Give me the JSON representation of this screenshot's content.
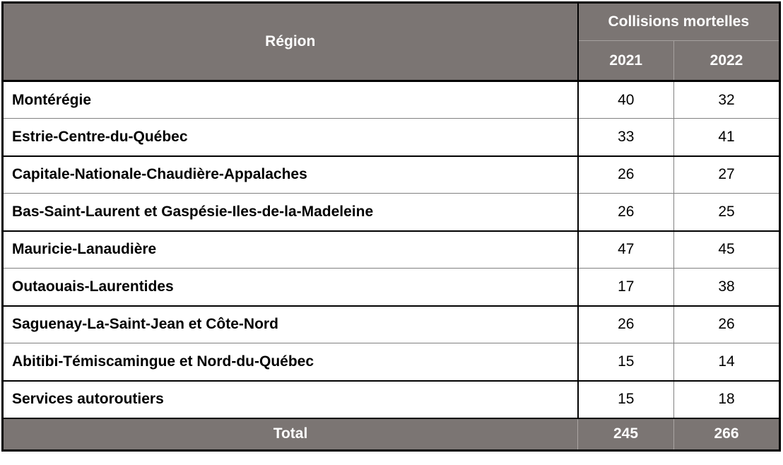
{
  "chart_data": {
    "type": "table",
    "header": {
      "region": "Région",
      "group": "Collisions mortelles",
      "years": [
        "2021",
        "2022"
      ]
    },
    "rows": [
      {
        "region": "Montérégie",
        "y2021": 40,
        "y2022": 32
      },
      {
        "region": "Estrie-Centre-du-Québec",
        "y2021": 33,
        "y2022": 41
      },
      {
        "region": "Capitale-Nationale-Chaudière-Appalaches",
        "y2021": 26,
        "y2022": 27
      },
      {
        "region": "Bas-Saint-Laurent et Gaspésie-Iles-de-la-Madeleine",
        "y2021": 26,
        "y2022": 25
      },
      {
        "region": "Mauricie-Lanaudière",
        "y2021": 47,
        "y2022": 45
      },
      {
        "region": "Outaouais-Laurentides",
        "y2021": 17,
        "y2022": 38
      },
      {
        "region": "Saguenay-La-Saint-Jean et Côte-Nord",
        "y2021": 26,
        "y2022": 26
      },
      {
        "region": "Abitibi-Témiscamingue et Nord-du-Québec",
        "y2021": 15,
        "y2022": 14
      },
      {
        "region": "Services autoroutiers",
        "y2021": 15,
        "y2022": 18
      }
    ],
    "total": {
      "label": "Total",
      "y2021": 245,
      "y2022": 266
    }
  },
  "colors": {
    "header_bg": "#7b7573",
    "header_text": "#ffffff",
    "thick_border": "#000000",
    "thin_border": "#808080",
    "light_divider_on_gray": "#aaa5a3"
  }
}
